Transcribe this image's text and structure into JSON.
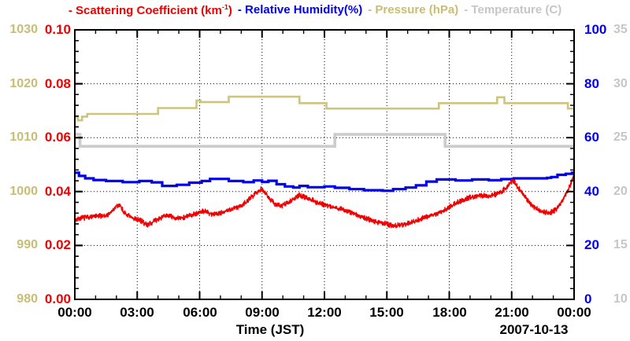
{
  "legend": {
    "scattering": {
      "prefix": "- Scattering Coefficient (km",
      "sup": "-1",
      "suffix": ")"
    },
    "humidity": "- Relative Humidity(%)",
    "pressure": "- Pressure (hPa)",
    "temperature": {
      "prefix": "- Temperature (",
      "degree": "°",
      "letter": "C",
      "suffix": ")"
    }
  },
  "colors": {
    "scattering": "#f00000",
    "humidity": "#0000ee",
    "pressure_text": "#c9bd74",
    "pressure_line": "#cfc47e",
    "temperature_text": "#c6c6c6",
    "temperature_line": "#cccccc",
    "frame": "#000000",
    "background": "#ffffff"
  },
  "axes": {
    "pressure": {
      "ticks": [
        "1030",
        "1020",
        "1010",
        "1000",
        "990",
        "980"
      ]
    },
    "scattering": {
      "ticks": [
        "0.10",
        "0.08",
        "0.06",
        "0.04",
        "0.02",
        "0.00"
      ]
    },
    "humidity": {
      "ticks": [
        "100",
        "80",
        "60",
        "40",
        "20",
        "0"
      ]
    },
    "temperature": {
      "ticks": [
        "35",
        "30",
        "25",
        "20",
        "15",
        "10"
      ]
    },
    "time": {
      "ticks": [
        "00:00",
        "03:00",
        "06:00",
        "09:00",
        "12:00",
        "15:00",
        "18:00",
        "21:00",
        "00:00"
      ],
      "label": "Time (JST)",
      "date": "2007-10-13"
    }
  },
  "chart_data": {
    "type": "line",
    "xlabel": "Time (JST)",
    "date": "2007-10-13",
    "x_range_hours": [
      0,
      24
    ],
    "x_major_tick_hours": 3,
    "x_minor_tick_hours": 1,
    "grid": {
      "style": "dotted",
      "vertical_every_hours": 3,
      "horizontal_at_left_axis": [
        0.02,
        0.04,
        0.06,
        0.08
      ]
    },
    "series": [
      {
        "name": "Pressure (hPa)",
        "axis": "left-outer",
        "color": "#cfc47e",
        "width": 2.6,
        "range": [
          980,
          1030
        ],
        "style": "steps",
        "steps": [
          [
            0,
            1013.8
          ],
          [
            0.15,
            1013.2
          ],
          [
            0.35,
            1013.9
          ],
          [
            0.6,
            1014.4
          ],
          [
            4.0,
            1015.5
          ],
          [
            5.85,
            1016.9
          ],
          [
            6.05,
            1016.6
          ],
          [
            7.4,
            1017.6
          ],
          [
            10.8,
            1016.4
          ],
          [
            12.1,
            1015.4
          ],
          [
            17.5,
            1016.4
          ],
          [
            20.3,
            1017.5
          ],
          [
            20.65,
            1016.4
          ],
          [
            23.7,
            1015.4
          ]
        ]
      },
      {
        "name": "Temperature (C)",
        "axis": "right-outer",
        "color": "#cccccc",
        "width": 3.6,
        "range": [
          10,
          35
        ],
        "style": "steps",
        "steps": [
          [
            0,
            25.3
          ],
          [
            0.25,
            24.2
          ],
          [
            12.5,
            25.3
          ],
          [
            17.8,
            24.2
          ]
        ]
      },
      {
        "name": "Relative Humidity(%)",
        "axis": "right-inner",
        "color": "#0000ee",
        "width": 3.2,
        "range": [
          0,
          100
        ],
        "style": "steps",
        "steps": [
          [
            0,
            47.0
          ],
          [
            0.2,
            45.8
          ],
          [
            0.5,
            44.9
          ],
          [
            0.9,
            44.3
          ],
          [
            1.5,
            43.9
          ],
          [
            2.3,
            43.5
          ],
          [
            3.1,
            43.9
          ],
          [
            3.7,
            43.4
          ],
          [
            4.2,
            42.1
          ],
          [
            4.9,
            42.5
          ],
          [
            5.5,
            43.3
          ],
          [
            6.1,
            43.9
          ],
          [
            6.5,
            44.7
          ],
          [
            7.4,
            43.9
          ],
          [
            8.1,
            43.5
          ],
          [
            8.6,
            44.1
          ],
          [
            9.0,
            43.6
          ],
          [
            9.3,
            44.0
          ],
          [
            9.7,
            42.7
          ],
          [
            10.1,
            41.9
          ],
          [
            10.5,
            41.5
          ],
          [
            10.8,
            42.1
          ],
          [
            11.2,
            41.6
          ],
          [
            12.0,
            41.9
          ],
          [
            12.5,
            41.4
          ],
          [
            13.2,
            40.9
          ],
          [
            13.9,
            40.5
          ],
          [
            14.8,
            40.3
          ],
          [
            15.3,
            40.9
          ],
          [
            15.9,
            41.5
          ],
          [
            16.4,
            42.3
          ],
          [
            16.9,
            43.7
          ],
          [
            17.4,
            44.5
          ],
          [
            18.3,
            44.1
          ],
          [
            19.1,
            44.5
          ],
          [
            19.9,
            44.2
          ],
          [
            20.5,
            44.6
          ],
          [
            21.1,
            44.9
          ],
          [
            22.7,
            45.1
          ],
          [
            22.9,
            45.4
          ],
          [
            23.2,
            46.2
          ],
          [
            23.6,
            46.6
          ],
          [
            23.9,
            47.0
          ]
        ]
      },
      {
        "name": "Scattering Coefficient (km-1)",
        "axis": "left-inner",
        "color": "#f00000",
        "width": 1.4,
        "range": [
          0,
          0.1
        ],
        "style": "noisy-line",
        "noise": 0.0011,
        "anchors": [
          [
            0,
            0.0295
          ],
          [
            0.3,
            0.0302
          ],
          [
            0.7,
            0.0306
          ],
          [
            1.2,
            0.0309
          ],
          [
            1.6,
            0.0313
          ],
          [
            1.95,
            0.034
          ],
          [
            2.15,
            0.0352
          ],
          [
            2.4,
            0.0318
          ],
          [
            2.8,
            0.03
          ],
          [
            3.1,
            0.0296
          ],
          [
            3.45,
            0.0277
          ],
          [
            3.8,
            0.0289
          ],
          [
            4.2,
            0.0305
          ],
          [
            4.5,
            0.0312
          ],
          [
            4.9,
            0.0299
          ],
          [
            5.3,
            0.0306
          ],
          [
            5.8,
            0.0318
          ],
          [
            6.2,
            0.0328
          ],
          [
            6.6,
            0.0316
          ],
          [
            7.0,
            0.0321
          ],
          [
            7.5,
            0.0333
          ],
          [
            8.0,
            0.0349
          ],
          [
            8.4,
            0.0372
          ],
          [
            8.7,
            0.0396
          ],
          [
            8.95,
            0.041
          ],
          [
            9.15,
            0.0398
          ],
          [
            9.4,
            0.0371
          ],
          [
            9.65,
            0.0351
          ],
          [
            9.95,
            0.0347
          ],
          [
            10.25,
            0.0359
          ],
          [
            10.55,
            0.0373
          ],
          [
            10.8,
            0.0386
          ],
          [
            11.1,
            0.038
          ],
          [
            11.45,
            0.0367
          ],
          [
            11.75,
            0.0357
          ],
          [
            12.1,
            0.035
          ],
          [
            12.5,
            0.0341
          ],
          [
            12.9,
            0.0333
          ],
          [
            13.3,
            0.0322
          ],
          [
            13.7,
            0.0308
          ],
          [
            14.1,
            0.0297
          ],
          [
            14.5,
            0.0289
          ],
          [
            14.9,
            0.0281
          ],
          [
            15.35,
            0.0273
          ],
          [
            15.8,
            0.0277
          ],
          [
            16.2,
            0.0287
          ],
          [
            16.7,
            0.03
          ],
          [
            17.2,
            0.0313
          ],
          [
            17.6,
            0.0323
          ],
          [
            18.0,
            0.0343
          ],
          [
            18.5,
            0.0363
          ],
          [
            18.9,
            0.0377
          ],
          [
            19.3,
            0.0382
          ],
          [
            19.7,
            0.0387
          ],
          [
            20.0,
            0.0384
          ],
          [
            20.35,
            0.0393
          ],
          [
            20.65,
            0.0407
          ],
          [
            20.9,
            0.0429
          ],
          [
            21.05,
            0.0442
          ],
          [
            21.25,
            0.0421
          ],
          [
            21.5,
            0.0397
          ],
          [
            21.8,
            0.0363
          ],
          [
            22.1,
            0.034
          ],
          [
            22.45,
            0.0327
          ],
          [
            22.8,
            0.0321
          ],
          [
            23.1,
            0.0331
          ],
          [
            23.4,
            0.0361
          ],
          [
            23.7,
            0.0406
          ],
          [
            23.85,
            0.0432
          ],
          [
            24,
            0.0458
          ]
        ]
      }
    ]
  }
}
